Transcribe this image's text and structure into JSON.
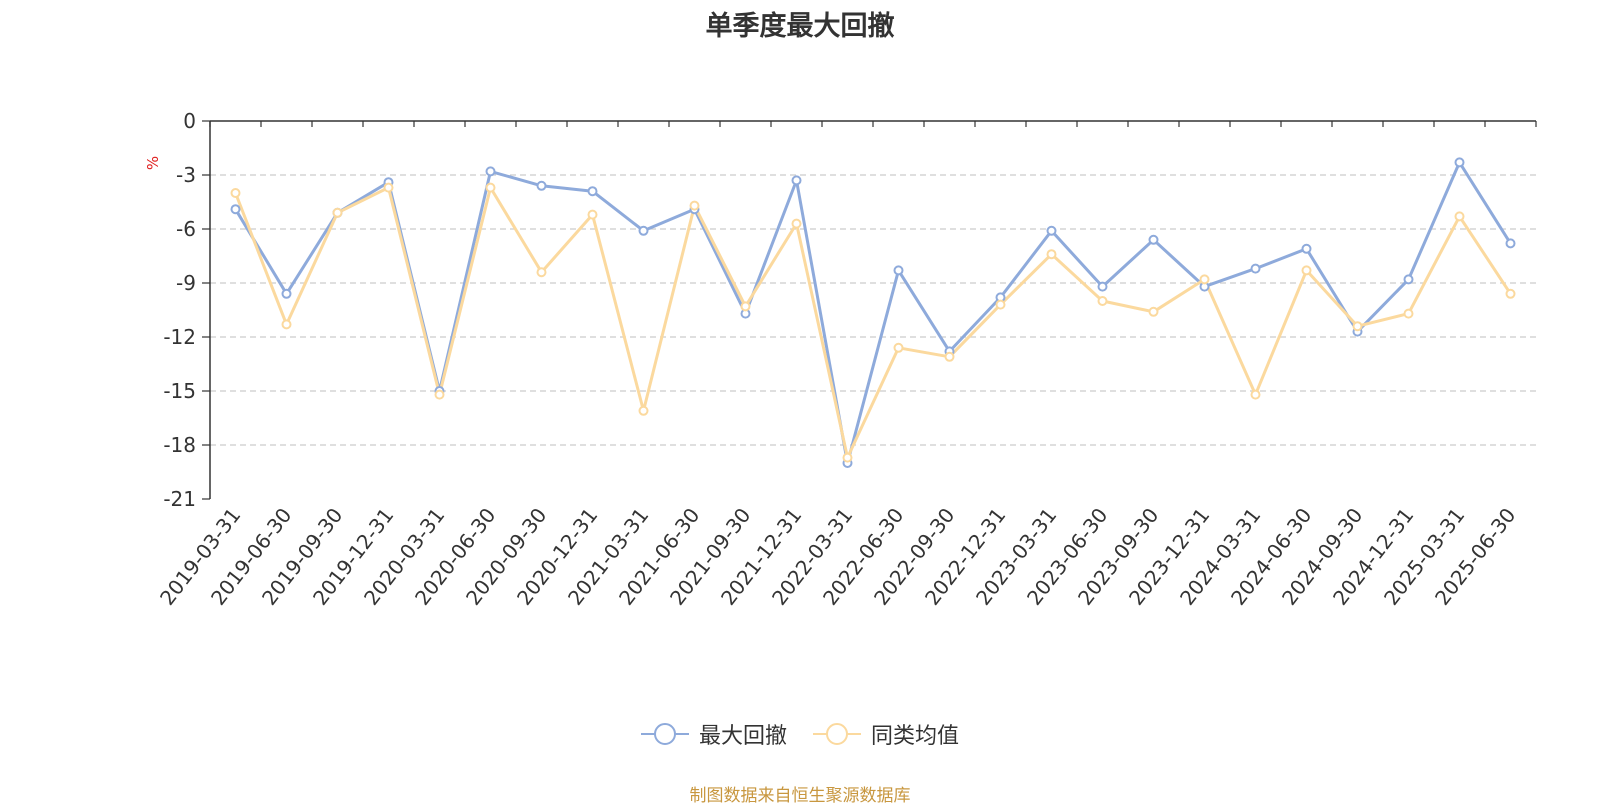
{
  "title": "单季度最大回撤",
  "source": "制图数据来自恒生聚源数据库",
  "chart_data": {
    "type": "line",
    "title": "单季度最大回撤",
    "ylabel": "%",
    "ylim": [
      -21,
      0
    ],
    "yticks": [
      0,
      -3,
      -6,
      -9,
      -12,
      -15,
      -18,
      -21
    ],
    "grid": true,
    "legend_position": "bottom",
    "x": [
      "2019-03-31",
      "2019-06-30",
      "2019-09-30",
      "2019-12-31",
      "2020-03-31",
      "2020-06-30",
      "2020-09-30",
      "2020-12-31",
      "2021-03-31",
      "2021-06-30",
      "2021-09-30",
      "2021-12-31",
      "2022-03-31",
      "2022-06-30",
      "2022-09-30",
      "2022-12-31",
      "2023-03-31",
      "2023-06-30",
      "2023-09-30",
      "2023-12-31",
      "2024-03-31",
      "2024-06-30",
      "2024-09-30",
      "2024-12-31",
      "2025-03-31",
      "2025-06-30"
    ],
    "series": [
      {
        "name": "最大回撤",
        "color": "#8eaadb",
        "values": [
          -4.9,
          -9.6,
          -5.1,
          -3.4,
          -15.0,
          -2.8,
          -3.6,
          -3.9,
          -6.1,
          -4.9,
          -10.7,
          -3.3,
          -19.0,
          -8.3,
          -12.8,
          -9.8,
          -6.1,
          -9.2,
          -6.6,
          -9.2,
          -8.2,
          -7.1,
          -11.7,
          -8.8,
          -2.3,
          -6.8
        ]
      },
      {
        "name": "同类均值",
        "color": "#fbd99e",
        "values": [
          -4.0,
          -11.3,
          -5.1,
          -3.7,
          -15.2,
          -3.7,
          -8.4,
          -5.2,
          -16.1,
          -4.7,
          -10.3,
          -5.7,
          -18.7,
          -12.6,
          -13.1,
          -10.2,
          -7.4,
          -10.0,
          -10.6,
          -8.8,
          -15.2,
          -8.3,
          -11.4,
          -10.7,
          -5.3,
          -9.6
        ]
      }
    ]
  }
}
